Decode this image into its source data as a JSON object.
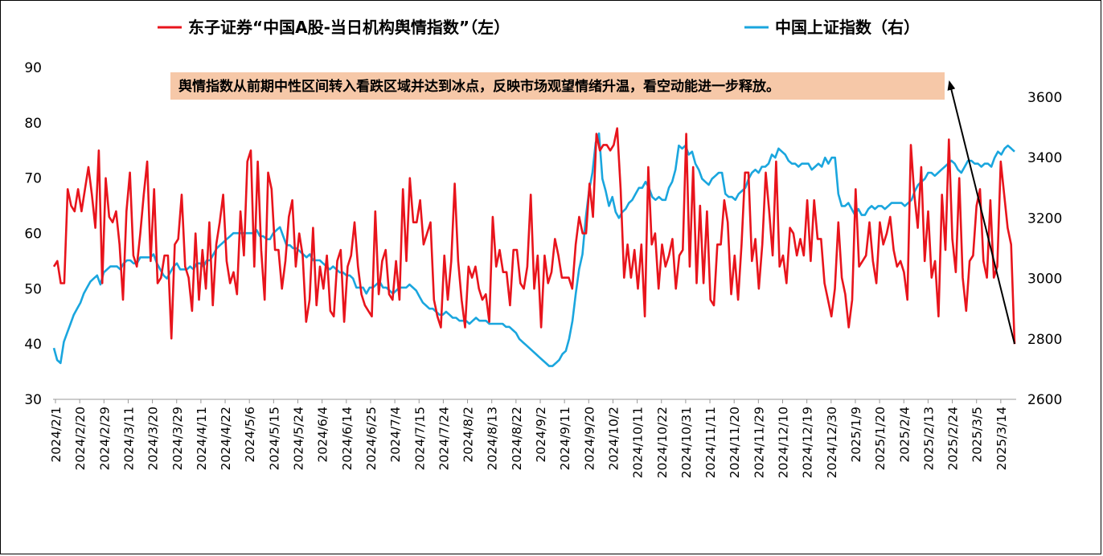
{
  "chart_data": {
    "type": "line",
    "title": "",
    "colors": {
      "sentiment": "#e8141c",
      "index": "#1aa6de",
      "annotation_bg": "#f6c8a8",
      "axis": "#999999"
    },
    "legend": {
      "placement": "top",
      "sentiment_label": "东子证券“中国A股-当日机构舆情指数”（左）",
      "index_label": "中国上证指数（右）"
    },
    "annotation": "舆情指数从前期中性区间转入看跌区域并达到冰点，反映市场观望情绪升温，看空动能进一步释放。",
    "left_axis": {
      "ylim": [
        30,
        90
      ],
      "ticks": [
        "30",
        "40",
        "50",
        "60",
        "70",
        "80",
        "90"
      ]
    },
    "right_axis": {
      "ylim": [
        2600,
        3700
      ],
      "ticks": [
        "2600",
        "2800",
        "3000",
        "3200",
        "3400",
        "3600"
      ]
    },
    "x_start": "2024/2/1",
    "x_end": "2025/3/21",
    "x_tick_labels": [
      "2024/2/1",
      "2024/2/20",
      "2024/2/29",
      "2024/3/11",
      "2024/3/20",
      "2024/3/29",
      "2024/4/11",
      "2024/4/22",
      "2024/5/6",
      "2024/5/15",
      "2024/5/24",
      "2024/6/4",
      "2024/6/14",
      "2024/6/25",
      "2024/7/4",
      "2024/7/15",
      "2024/7/24",
      "2024/8/2",
      "2024/8/13",
      "2024/8/22",
      "2024/9/2",
      "2024/9/11",
      "2024/9/20",
      "2024/10/2",
      "2024/10/11",
      "2024/10/22",
      "2024/10/31",
      "2024/11/11",
      "2024/11/20",
      "2024/11/29",
      "2024/12/10",
      "2024/12/19",
      "2024/12/30",
      "2025/1/9",
      "2025/1/20",
      "2025/2/4",
      "2025/2/13",
      "2025/2/24",
      "2025/3/5",
      "2025/3/14"
    ],
    "series": [
      {
        "name": "东子证券“中国A股-当日机构舆情指数”（左）",
        "axis": "left",
        "values": [
          54,
          55,
          51,
          51,
          68,
          65,
          64,
          68,
          64,
          68,
          72,
          67,
          61,
          75,
          51,
          70,
          63,
          62,
          64,
          58,
          48,
          64,
          71,
          56,
          54,
          60,
          67,
          73,
          55,
          68,
          51,
          52,
          56,
          56,
          41,
          58,
          59,
          67,
          54,
          52,
          46,
          60,
          48,
          57,
          50,
          62,
          47,
          58,
          62,
          67,
          55,
          51,
          53,
          49,
          64,
          56,
          73,
          75,
          54,
          73,
          57,
          48,
          71,
          68,
          57,
          57,
          50,
          55,
          63,
          66,
          54,
          60,
          56,
          44,
          48,
          61,
          47,
          54,
          50,
          56,
          46,
          45,
          55,
          57,
          44,
          54,
          56,
          62,
          54,
          49,
          47,
          46,
          45,
          64,
          49,
          55,
          57,
          49,
          48,
          55,
          48,
          68,
          55,
          70,
          62,
          62,
          66,
          58,
          60,
          62,
          48,
          45,
          43,
          56,
          48,
          55,
          69,
          55,
          48,
          43,
          54,
          52,
          54,
          50,
          48,
          49,
          44,
          63,
          54,
          57,
          53,
          53,
          47,
          57,
          57,
          51,
          50,
          54,
          67,
          50,
          56,
          43,
          56,
          51,
          53,
          59,
          56,
          52,
          52,
          52,
          50,
          58,
          63,
          60,
          60,
          69,
          63,
          78,
          75,
          76,
          76,
          75,
          76,
          79,
          68,
          52,
          58,
          52,
          57,
          50,
          58,
          45,
          72,
          58,
          60,
          50,
          58,
          54,
          56,
          59,
          50,
          56,
          57,
          78,
          54,
          72,
          51,
          65,
          51,
          64,
          48,
          47,
          58,
          58,
          66,
          62,
          49,
          56,
          48,
          58,
          71,
          71,
          55,
          59,
          50,
          58,
          71,
          64,
          56,
          73,
          54,
          56,
          51,
          61,
          60,
          56,
          59,
          56,
          66,
          55,
          66,
          59,
          59,
          51,
          48,
          45,
          50,
          62,
          52,
          49,
          43,
          48,
          68,
          54,
          55,
          56,
          62,
          55,
          51,
          62,
          58,
          60,
          63,
          57,
          54,
          55,
          53,
          48,
          76,
          67,
          61,
          72,
          55,
          64,
          52,
          55,
          45,
          67,
          57,
          77,
          59,
          53,
          70,
          52,
          46,
          55,
          56,
          65,
          68,
          55,
          52,
          66,
          52,
          54,
          73,
          67,
          61,
          58,
          40
        ]
      },
      {
        "name": "中国上证指数（右）",
        "axis": "right",
        "values": [
          2770,
          2730,
          2720,
          2790,
          2820,
          2850,
          2880,
          2900,
          2920,
          2950,
          2970,
          2990,
          3000,
          3010,
          2980,
          3020,
          3030,
          3040,
          3040,
          3040,
          3030,
          3050,
          3060,
          3060,
          3050,
          3050,
          3070,
          3070,
          3070,
          3070,
          3080,
          3050,
          3030,
          3010,
          3000,
          3020,
          3040,
          3050,
          3030,
          3030,
          3030,
          3040,
          3030,
          3050,
          3050,
          3040,
          3060,
          3060,
          3080,
          3100,
          3110,
          3120,
          3130,
          3140,
          3150,
          3150,
          3150,
          3150,
          3150,
          3150,
          3150,
          3160,
          3140,
          3140,
          3130,
          3130,
          3150,
          3160,
          3170,
          3140,
          3110,
          3110,
          3100,
          3100,
          3090,
          3080,
          3070,
          3080,
          3060,
          3060,
          3060,
          3050,
          3040,
          3030,
          3040,
          3030,
          3020,
          3020,
          3010,
          3010,
          3000,
          2970,
          2970,
          2970,
          2950,
          2970,
          2970,
          2980,
          2990,
          2970,
          2970,
          2960,
          2950,
          2960,
          2970,
          2970,
          2970,
          2980,
          2970,
          2960,
          2940,
          2920,
          2910,
          2900,
          2900,
          2890,
          2880,
          2880,
          2890,
          2880,
          2870,
          2870,
          2860,
          2860,
          2860,
          2850,
          2860,
          2870,
          2860,
          2860,
          2860,
          2850,
          2850,
          2850,
          2850,
          2850,
          2840,
          2840,
          2830,
          2820,
          2800,
          2790,
          2780,
          2770,
          2760,
          2750,
          2740,
          2730,
          2720,
          2710,
          2710,
          2720,
          2730,
          2750,
          2760,
          2800,
          2860,
          2950,
          3030,
          3080,
          3200,
          3290,
          3350,
          3450,
          3480,
          3330,
          3290,
          3240,
          3270,
          3220,
          3200,
          3220,
          3230,
          3250,
          3260,
          3280,
          3300,
          3300,
          3320,
          3300,
          3270,
          3260,
          3270,
          3260,
          3260,
          3300,
          3320,
          3360,
          3440,
          3430,
          3440,
          3410,
          3420,
          3380,
          3360,
          3330,
          3320,
          3310,
          3330,
          3340,
          3350,
          3350,
          3280,
          3270,
          3270,
          3260,
          3280,
          3290,
          3300,
          3330,
          3350,
          3360,
          3350,
          3370,
          3370,
          3380,
          3410,
          3400,
          3430,
          3420,
          3410,
          3390,
          3380,
          3380,
          3370,
          3380,
          3380,
          3380,
          3360,
          3370,
          3380,
          3370,
          3400,
          3380,
          3400,
          3400,
          3280,
          3240,
          3240,
          3250,
          3230,
          3210,
          3230,
          3210,
          3210,
          3230,
          3240,
          3230,
          3240,
          3240,
          3230,
          3240,
          3250,
          3250,
          3250,
          3250,
          3240,
          3250,
          3260,
          3290,
          3310,
          3320,
          3330,
          3350,
          3350,
          3340,
          3350,
          3360,
          3370,
          3380,
          3390,
          3380,
          3360,
          3350,
          3370,
          3390,
          3390,
          3380,
          3380,
          3370,
          3380,
          3380,
          3370,
          3400,
          3420,
          3410,
          3430,
          3440,
          3430,
          3420
        ]
      }
    ]
  }
}
